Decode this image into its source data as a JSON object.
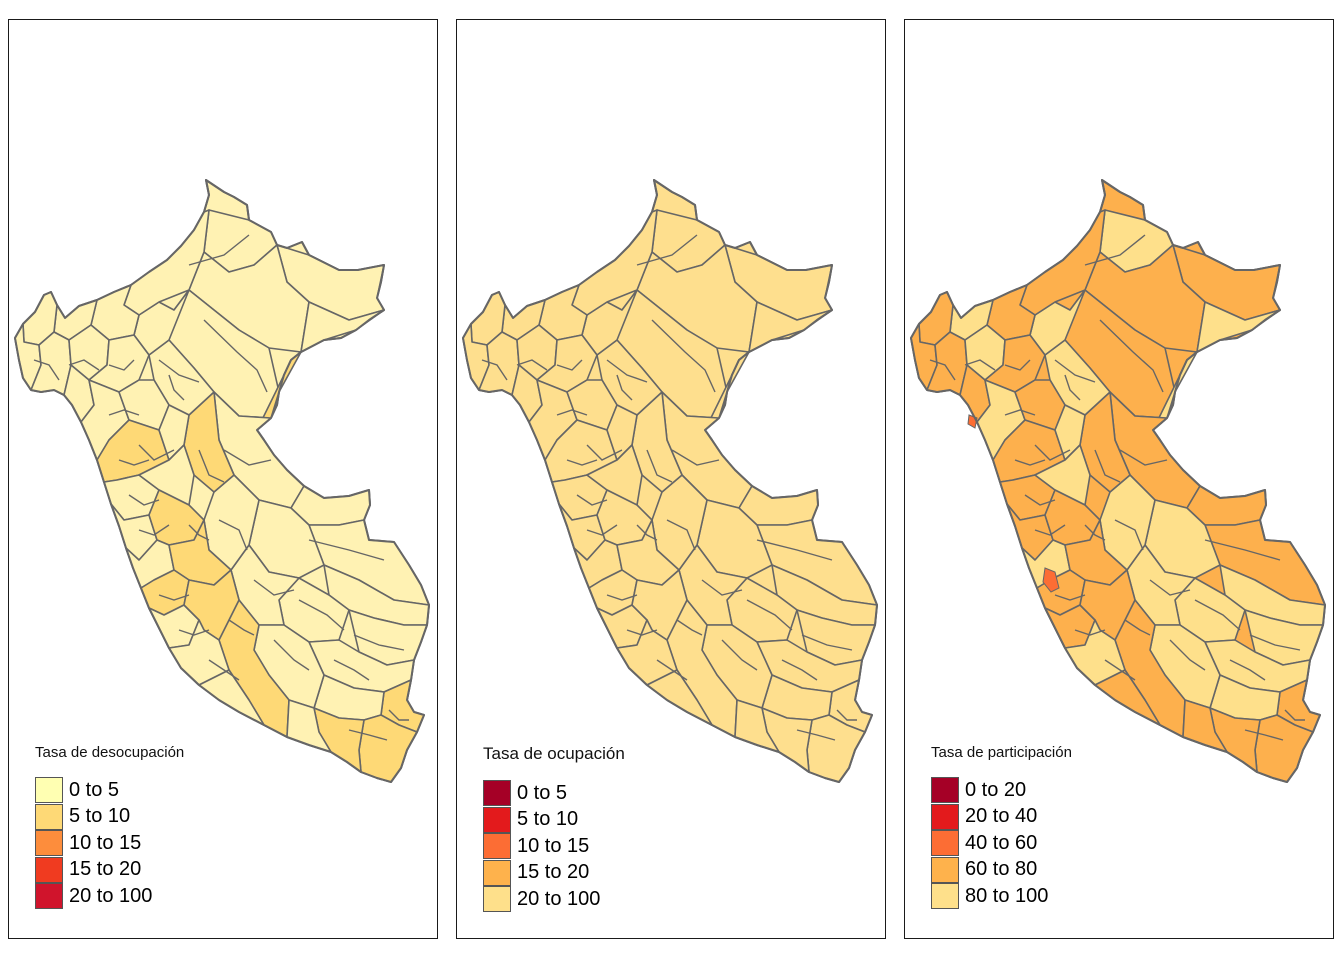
{
  "maps": [
    {
      "legend_title": "Tasa de desocupación",
      "base_fill": "#fff2b3",
      "legend": [
        {
          "label": "0 to 5",
          "color": "#ffffb2"
        },
        {
          "label": "5 to 10",
          "color": "#fed976"
        },
        {
          "label": "10 to 15",
          "color": "#fd8d3c"
        },
        {
          "label": "15 to 20",
          "color": "#f03b20"
        },
        {
          "label": "20 to 100",
          "color": "#d0142c"
        }
      ]
    },
    {
      "legend_title": "Tasa de ocupación",
      "base_fill": "#fedf8e",
      "legend": [
        {
          "label": "0 to 5",
          "color": "#a50026"
        },
        {
          "label": "5 to 10",
          "color": "#e31a1c"
        },
        {
          "label": "10 to 15",
          "color": "#fc6d34"
        },
        {
          "label": "15 to 20",
          "color": "#feb24c"
        },
        {
          "label": "20 to 100",
          "color": "#fee08b"
        }
      ]
    },
    {
      "legend_title": "Tasa de participación",
      "base_fill": "#fdb04d",
      "legend": [
        {
          "label": "0 to 20",
          "color": "#a50026"
        },
        {
          "label": "20 to 40",
          "color": "#e31a1c"
        },
        {
          "label": "40 to 60",
          "color": "#fc6d34"
        },
        {
          "label": "60 to 80",
          "color": "#feb24c"
        },
        {
          "label": "80 to 100",
          "color": "#fee08b"
        }
      ]
    }
  ]
}
